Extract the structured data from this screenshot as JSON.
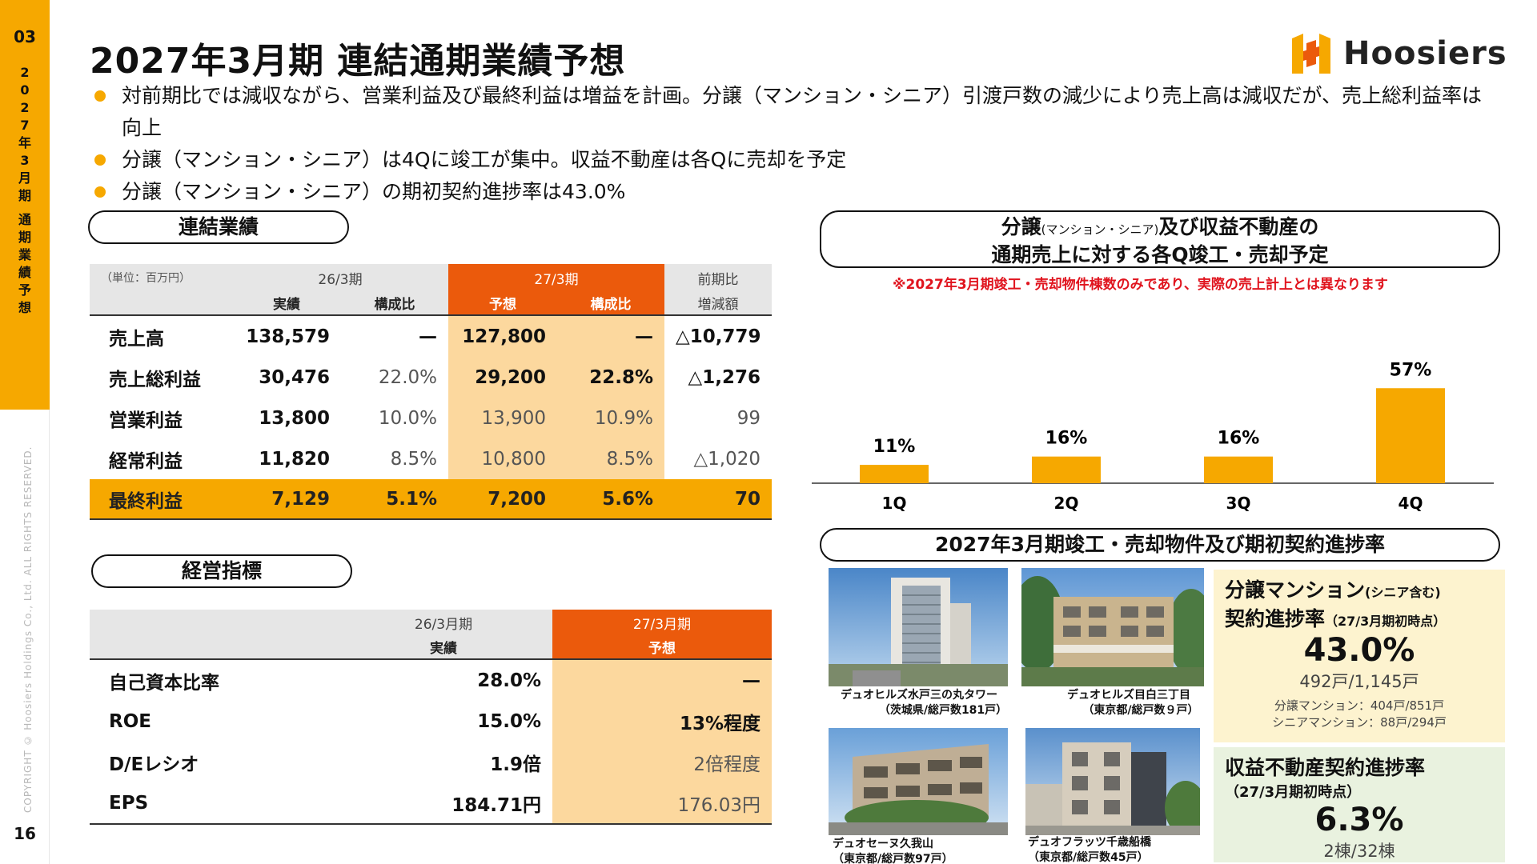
{
  "sidebar": {
    "section_num": "03",
    "vertical_title": [
      "2",
      "0",
      "2",
      "7",
      "年",
      "3",
      "月",
      "期",
      "",
      "通",
      "期",
      "業",
      "績",
      "予",
      "想"
    ],
    "copyright": "COPYRIGHT © Hoosiers Holdings Co., Ltd. ALL RIGHTS RESERVED.",
    "page_number": "16"
  },
  "header": {
    "title": "2027年3月期 連結通期業績予想",
    "logo_text": "Hoosiers"
  },
  "colors": {
    "accent": "#f6a800",
    "highlight": "#eb5a0c",
    "fill_light": "#fcd89e",
    "note_red": "#e0141e"
  },
  "bullets": [
    "対前期比では減収ながら、営業利益及び最終利益は増益を計画。分譲（マンション・シニア）引渡戸数の減少により売上高は減収だが、売上総利益率は向上",
    "分譲（マンション・シニア）は4Qに竣工が集中。収益不動産は各Qに売却を予定",
    "分譲（マンション・シニア）の期初契約進捗率は43.0%"
  ],
  "consolidated": {
    "pill": "連結業績",
    "unit": "（単位：百万円）",
    "period_prev": "26/3期",
    "period_next": "27/3期",
    "diff_header_1": "前期比",
    "diff_header_2": "増減額",
    "sub_actual": "実績",
    "sub_ratio": "構成比",
    "sub_forecast": "予想",
    "sub_ratio2": "構成比",
    "rows": [
      {
        "label": "売上高",
        "actual": "138,579",
        "ratio": "—",
        "forecast": "127,800",
        "ratio2": "—",
        "diff": "△10,779"
      },
      {
        "label": "売上総利益",
        "actual": "30,476",
        "ratio": "22.0%",
        "forecast": "29,200",
        "ratio2": "22.8%",
        "diff": "△1,276"
      },
      {
        "label": "営業利益",
        "actual": "13,800",
        "ratio": "10.0%",
        "forecast": "13,900",
        "ratio2": "10.9%",
        "diff": "99"
      },
      {
        "label": "経常利益",
        "actual": "11,820",
        "ratio": "8.5%",
        "forecast": "10,800",
        "ratio2": "8.5%",
        "diff": "△1,020"
      },
      {
        "label": "最終利益",
        "actual": "7,129",
        "ratio": "5.1%",
        "forecast": "7,200",
        "ratio2": "5.6%",
        "diff": "70"
      }
    ]
  },
  "indicators": {
    "pill": "経営指標",
    "period_prev": "26/3月期",
    "period_next": "27/3月期",
    "sub_actual": "実績",
    "sub_forecast": "予想",
    "rows": [
      {
        "label": "自己資本比率",
        "actual": "28.0%",
        "forecast": "—"
      },
      {
        "label": "ROE",
        "actual": "15.0%",
        "forecast": "13%程度"
      },
      {
        "label": "D/Eレシオ",
        "actual": "1.9倍",
        "forecast": "2倍程度"
      },
      {
        "label": "EPS",
        "actual": "184.71円",
        "forecast": "176.03円"
      }
    ]
  },
  "quarter_panel": {
    "pill_line1_a": "分譲",
    "pill_line1_small": "(マンション・シニア)",
    "pill_line1_b": "及び収益不動産の",
    "pill_line2": "通期売上に対する各Q竣工・売却予定",
    "note": "※2027年3月期竣工・売却物件棟数のみであり、実際の売上計上とは異なります"
  },
  "chart_data": {
    "type": "bar",
    "categories": [
      "1Q",
      "2Q",
      "3Q",
      "4Q"
    ],
    "values": [
      11,
      16,
      16,
      57
    ],
    "value_labels": [
      "11%",
      "16%",
      "16%",
      "57%"
    ],
    "ylim": [
      0,
      60
    ]
  },
  "properties": {
    "pill": "2027年3月期竣工・売却物件及び期初契約進捗率",
    "items": [
      {
        "name": "デュオヒルズ水戸三の丸タワー",
        "detail": "（茨城県/総戸数181戸）"
      },
      {
        "name": "デュオヒルズ目白三丁目",
        "detail": "（東京都/総戸数９戸）"
      },
      {
        "name": "デュオセーヌ久我山",
        "detail": "（東京都/総戸数97戸）"
      },
      {
        "name": "デュオフラッツ千歳船橋",
        "detail": "（東京都/総戸数45戸）"
      }
    ]
  },
  "progress": {
    "condo_title_a": "分譲マンション",
    "condo_title_small": "(シニア含む)",
    "condo_title_b": "契約進捗率",
    "condo_title_period": "（27/3月期初時点）",
    "condo_pct": "43.0%",
    "condo_units": "492戸/1,145戸",
    "condo_detail_1": "分譲マンション：404戸/851戸",
    "condo_detail_2": "シニアマンション：88戸/294戸",
    "income_title": "収益不動産契約進捗率",
    "income_period": "（27/3月期初時点）",
    "income_pct": "6.3%",
    "income_units": "2棟/32棟"
  }
}
